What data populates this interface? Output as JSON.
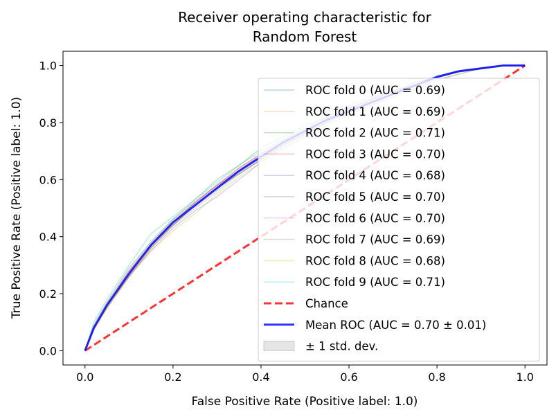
{
  "chart_data": {
    "type": "line",
    "title_lines": [
      "Receiver operating characteristic for",
      "Random Forest"
    ],
    "xlabel": "False Positive Rate (Positive label: 1.0)",
    "ylabel": "True Positive Rate (Positive label: 1.0)",
    "xlim": [
      -0.05,
      1.05
    ],
    "ylim": [
      -0.05,
      1.05
    ],
    "xticks": [
      0.0,
      0.2,
      0.4,
      0.6,
      0.8,
      1.0
    ],
    "yticks": [
      0.0,
      0.2,
      0.4,
      0.6,
      0.8,
      1.0
    ],
    "xtick_labels": [
      "0.0",
      "0.2",
      "0.4",
      "0.6",
      "0.8",
      "1.0"
    ],
    "ytick_labels": [
      "0.0",
      "0.2",
      "0.4",
      "0.6",
      "0.8",
      "1.0"
    ],
    "grid": false,
    "legend_position": "lower-right",
    "mean_x": [
      0.0,
      0.02,
      0.05,
      0.1,
      0.15,
      0.2,
      0.25,
      0.3,
      0.35,
      0.4,
      0.45,
      0.5,
      0.55,
      0.6,
      0.65,
      0.7,
      0.75,
      0.8,
      0.85,
      0.9,
      0.95,
      1.0
    ],
    "folds": [
      {
        "name": "ROC fold 0 (AUC = 0.69)",
        "color": "#1f77b4",
        "y": [
          0.0,
          0.08,
          0.16,
          0.27,
          0.37,
          0.44,
          0.51,
          0.57,
          0.62,
          0.67,
          0.72,
          0.76,
          0.8,
          0.84,
          0.87,
          0.9,
          0.93,
          0.96,
          0.98,
          0.99,
          1.0,
          1.0
        ]
      },
      {
        "name": "ROC fold 1 (AUC = 0.69)",
        "color": "#ff7f0e",
        "y": [
          0.0,
          0.07,
          0.15,
          0.26,
          0.36,
          0.44,
          0.51,
          0.57,
          0.63,
          0.68,
          0.72,
          0.76,
          0.8,
          0.84,
          0.87,
          0.9,
          0.93,
          0.96,
          0.98,
          0.99,
          1.0,
          1.0
        ]
      },
      {
        "name": "ROC fold 2 (AUC = 0.71)",
        "color": "#2ca02c",
        "y": [
          0.0,
          0.09,
          0.17,
          0.29,
          0.38,
          0.46,
          0.53,
          0.6,
          0.65,
          0.71,
          0.75,
          0.79,
          0.82,
          0.86,
          0.89,
          0.91,
          0.94,
          0.96,
          0.98,
          0.99,
          1.0,
          1.0
        ]
      },
      {
        "name": "ROC fold 3 (AUC = 0.70)",
        "color": "#d62728",
        "y": [
          0.0,
          0.08,
          0.16,
          0.28,
          0.37,
          0.45,
          0.52,
          0.58,
          0.64,
          0.69,
          0.73,
          0.77,
          0.81,
          0.85,
          0.88,
          0.91,
          0.93,
          0.96,
          0.98,
          0.99,
          1.0,
          1.0
        ]
      },
      {
        "name": "ROC fold 4 (AUC = 0.68)",
        "color": "#9467bd",
        "y": [
          0.0,
          0.08,
          0.16,
          0.26,
          0.35,
          0.43,
          0.49,
          0.54,
          0.6,
          0.66,
          0.71,
          0.75,
          0.79,
          0.83,
          0.86,
          0.89,
          0.92,
          0.95,
          0.97,
          0.99,
          1.0,
          1.0
        ]
      },
      {
        "name": "ROC fold 5 (AUC = 0.70)",
        "color": "#8c564b",
        "y": [
          0.0,
          0.08,
          0.16,
          0.27,
          0.37,
          0.45,
          0.52,
          0.58,
          0.63,
          0.68,
          0.73,
          0.77,
          0.81,
          0.85,
          0.88,
          0.91,
          0.93,
          0.96,
          0.98,
          0.99,
          1.0,
          1.0
        ]
      },
      {
        "name": "ROC fold 6 (AUC = 0.70)",
        "color": "#e377c2",
        "y": [
          0.0,
          0.08,
          0.16,
          0.28,
          0.37,
          0.45,
          0.52,
          0.58,
          0.63,
          0.69,
          0.73,
          0.77,
          0.81,
          0.85,
          0.88,
          0.91,
          0.93,
          0.96,
          0.98,
          0.99,
          1.0,
          1.0
        ]
      },
      {
        "name": "ROC fold 7 (AUC = 0.69)",
        "color": "#7f7f7f",
        "y": [
          0.0,
          0.08,
          0.15,
          0.26,
          0.36,
          0.44,
          0.51,
          0.57,
          0.62,
          0.67,
          0.72,
          0.76,
          0.8,
          0.84,
          0.87,
          0.9,
          0.93,
          0.96,
          0.98,
          0.99,
          1.0,
          1.0
        ]
      },
      {
        "name": "ROC fold 8 (AUC = 0.68)",
        "color": "#bcbd22",
        "y": [
          0.0,
          0.08,
          0.15,
          0.26,
          0.35,
          0.42,
          0.48,
          0.55,
          0.61,
          0.66,
          0.71,
          0.75,
          0.79,
          0.83,
          0.86,
          0.89,
          0.92,
          0.95,
          0.97,
          0.99,
          1.0,
          1.0
        ]
      },
      {
        "name": "ROC fold 9 (AUC = 0.71)",
        "color": "#17becf",
        "y": [
          0.0,
          0.1,
          0.18,
          0.3,
          0.41,
          0.47,
          0.53,
          0.59,
          0.65,
          0.7,
          0.74,
          0.78,
          0.82,
          0.85,
          0.88,
          0.91,
          0.94,
          0.96,
          0.98,
          0.99,
          1.0,
          1.0
        ]
      }
    ],
    "chance": {
      "name": "Chance",
      "color": "#ff0000",
      "x": [
        0.0,
        1.0
      ],
      "y": [
        0.0,
        1.0
      ]
    },
    "mean": {
      "name": "Mean ROC (AUC = 0.70 ± 0.01)",
      "color": "#0000ff",
      "y": [
        0.0,
        0.08,
        0.16,
        0.27,
        0.37,
        0.45,
        0.51,
        0.57,
        0.63,
        0.68,
        0.73,
        0.77,
        0.81,
        0.84,
        0.87,
        0.9,
        0.93,
        0.96,
        0.98,
        0.99,
        1.0,
        1.0
      ]
    },
    "band": {
      "name": "± 1 std. dev.",
      "color": "#808080",
      "std": [
        0.0,
        0.01,
        0.012,
        0.015,
        0.016,
        0.015,
        0.015,
        0.015,
        0.014,
        0.014,
        0.013,
        0.012,
        0.011,
        0.01,
        0.009,
        0.008,
        0.007,
        0.006,
        0.005,
        0.004,
        0.002,
        0.0
      ]
    }
  }
}
